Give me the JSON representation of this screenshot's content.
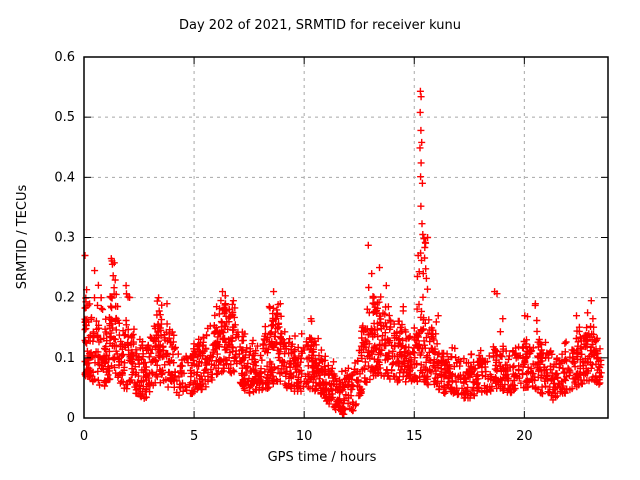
{
  "figure": {
    "background": "#ffffff"
  },
  "chart_data": {
    "type": "scatter",
    "title": "Day 202 of 2021, SRMTID for receiver kunu",
    "xlabel": "GPS time / hours",
    "ylabel": "SRMTID / TECUs",
    "xlim": [
      0,
      23.8
    ],
    "ylim": [
      0,
      0.6
    ],
    "xticks": [
      0,
      5,
      10,
      15,
      20
    ],
    "xtick_labels": [
      "0",
      "5",
      "10",
      "15",
      "20"
    ],
    "yticks": [
      0,
      0.1,
      0.2,
      0.3,
      0.4,
      0.5,
      0.6
    ],
    "ytick_labels": [
      "0",
      "0.1",
      "0.2",
      "0.3",
      "0.4",
      "0.5",
      "0.6"
    ],
    "grid": true,
    "grid_color": "#a8a8a8",
    "axis_color": "#000000",
    "marker": "plus",
    "marker_color": "#ff0000",
    "marker_size": 7,
    "series_name": "SRMTID",
    "seed": 1234567,
    "n_band_points": 2000,
    "band_profile": [
      [
        0.0,
        0.07,
        0.2
      ],
      [
        0.4,
        0.06,
        0.16
      ],
      [
        0.9,
        0.05,
        0.14
      ],
      [
        1.3,
        0.07,
        0.21
      ],
      [
        1.8,
        0.05,
        0.13
      ],
      [
        2.3,
        0.04,
        0.14
      ],
      [
        2.8,
        0.03,
        0.11
      ],
      [
        3.3,
        0.06,
        0.17
      ],
      [
        3.9,
        0.05,
        0.14
      ],
      [
        4.4,
        0.03,
        0.1
      ],
      [
        4.9,
        0.04,
        0.11
      ],
      [
        5.5,
        0.05,
        0.14
      ],
      [
        6.0,
        0.07,
        0.17
      ],
      [
        6.4,
        0.08,
        0.19
      ],
      [
        6.9,
        0.07,
        0.17
      ],
      [
        7.4,
        0.04,
        0.12
      ],
      [
        7.9,
        0.04,
        0.11
      ],
      [
        8.4,
        0.05,
        0.15
      ],
      [
        8.7,
        0.06,
        0.17
      ],
      [
        9.2,
        0.05,
        0.13
      ],
      [
        9.7,
        0.04,
        0.12
      ],
      [
        10.2,
        0.05,
        0.14
      ],
      [
        10.7,
        0.04,
        0.12
      ],
      [
        11.2,
        0.02,
        0.09
      ],
      [
        11.8,
        0.004,
        0.06
      ],
      [
        12.2,
        0.01,
        0.08
      ],
      [
        12.7,
        0.05,
        0.15
      ],
      [
        13.1,
        0.07,
        0.19
      ],
      [
        13.5,
        0.07,
        0.18
      ],
      [
        14.0,
        0.06,
        0.16
      ],
      [
        14.5,
        0.06,
        0.14
      ],
      [
        15.0,
        0.06,
        0.14
      ],
      [
        15.4,
        0.06,
        0.18
      ],
      [
        15.9,
        0.05,
        0.13
      ],
      [
        16.4,
        0.04,
        0.11
      ],
      [
        16.9,
        0.04,
        0.1
      ],
      [
        17.4,
        0.03,
        0.09
      ],
      [
        17.9,
        0.04,
        0.1
      ],
      [
        18.4,
        0.04,
        0.11
      ],
      [
        18.8,
        0.05,
        0.12
      ],
      [
        19.3,
        0.04,
        0.11
      ],
      [
        19.8,
        0.05,
        0.12
      ],
      [
        20.3,
        0.05,
        0.13
      ],
      [
        20.8,
        0.04,
        0.12
      ],
      [
        21.3,
        0.03,
        0.1
      ],
      [
        21.8,
        0.04,
        0.11
      ],
      [
        22.3,
        0.05,
        0.13
      ],
      [
        22.8,
        0.06,
        0.15
      ],
      [
        23.2,
        0.06,
        0.14
      ],
      [
        23.5,
        0.05,
        0.12
      ]
    ],
    "bursts": [
      [
        0.1,
        0.27,
        10
      ],
      [
        0.6,
        0.245,
        9
      ],
      [
        0.9,
        0.2,
        7
      ],
      [
        1.35,
        0.265,
        12
      ],
      [
        2.0,
        0.22,
        8
      ],
      [
        3.3,
        0.2,
        8
      ],
      [
        3.65,
        0.19,
        6
      ],
      [
        5.9,
        0.185,
        7
      ],
      [
        6.35,
        0.21,
        10
      ],
      [
        6.8,
        0.195,
        8
      ],
      [
        8.5,
        0.21,
        9
      ],
      [
        8.9,
        0.19,
        7
      ],
      [
        10.25,
        0.165,
        6
      ],
      [
        12.86,
        0.287,
        6
      ],
      [
        13.1,
        0.24,
        8
      ],
      [
        13.45,
        0.25,
        8
      ],
      [
        13.85,
        0.22,
        6
      ],
      [
        14.4,
        0.185,
        5
      ],
      [
        15.25,
        0.27,
        12
      ],
      [
        15.5,
        0.3,
        8
      ],
      [
        16.0,
        0.17,
        5
      ],
      [
        18.65,
        0.21,
        8
      ],
      [
        19.0,
        0.165,
        5
      ],
      [
        20.05,
        0.17,
        6
      ],
      [
        20.6,
        0.19,
        7
      ],
      [
        22.45,
        0.17,
        6
      ],
      [
        22.95,
        0.195,
        8
      ],
      [
        23.2,
        0.165,
        5
      ]
    ],
    "spike_points": [
      [
        15.28,
        0.543
      ],
      [
        15.31,
        0.534
      ],
      [
        15.27,
        0.508
      ],
      [
        15.3,
        0.478
      ],
      [
        15.34,
        0.458
      ],
      [
        15.26,
        0.449
      ],
      [
        15.31,
        0.424
      ],
      [
        15.29,
        0.401
      ],
      [
        15.37,
        0.39
      ],
      [
        15.3,
        0.352
      ],
      [
        15.35,
        0.323
      ],
      [
        15.39,
        0.305
      ],
      [
        15.29,
        0.274
      ],
      [
        15.44,
        0.298
      ],
      [
        15.47,
        0.266
      ],
      [
        15.52,
        0.248
      ],
      [
        15.55,
        0.232
      ],
      [
        15.6,
        0.214
      ],
      [
        15.33,
        0.262
      ],
      [
        15.41,
        0.24
      ]
    ]
  }
}
